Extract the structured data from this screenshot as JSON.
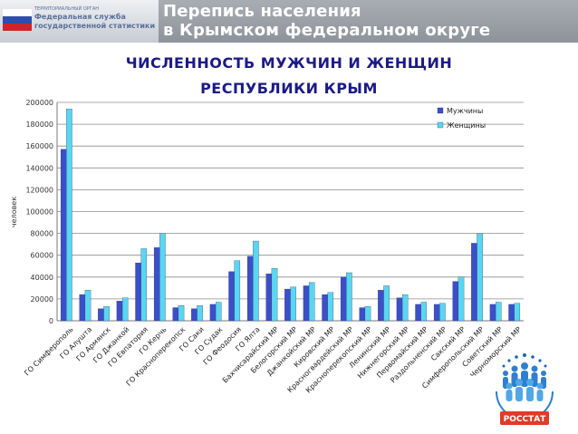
{
  "header": {
    "agency_line1": "Федеральная служба",
    "agency_line2": "государственной статистики",
    "agency_small": "ТЕРРИТОРИАЛЬНЫЙ ОРГАН",
    "title_line1": "Перепись населения",
    "title_line2": "в Крымском федеральном округе"
  },
  "logo": {
    "text": "РОССТАТ"
  },
  "chart_data": {
    "type": "bar",
    "title_line1": "ЧИСЛЕННОСТЬ МУЖЧИН И ЖЕНЩИН",
    "title_line2": "РЕСПУБЛИКИ КРЫМ",
    "ylabel": "человек",
    "ylim": [
      0,
      200000
    ],
    "yticks": [
      "0",
      "20000",
      "40000",
      "60000",
      "80000",
      "100000",
      "120000",
      "140000",
      "160000",
      "180000",
      "200000"
    ],
    "grid": true,
    "legend_position": "top-right",
    "categories": [
      "ГО Симферополь",
      "ГО Алушта",
      "ГО Армянск",
      "ГО Джанкой",
      "ГО Евпатория",
      "ГО Керчь",
      "ГО Красноперекопск",
      "ГО Саки",
      "ГО Судак",
      "ГО Феодосия",
      "ГО Ялта",
      "Бахчисарайский МР",
      "Белогорский МР",
      "Джанкойский МР",
      "Кировский МР",
      "Красногвардейский МР",
      "Красноперекопский МР",
      "Ленинский МР",
      "Нижнегорский МР",
      "Первомайский МР",
      "Раздольненский МР",
      "Сакский МР",
      "Симферопольский МР",
      "Советский МР",
      "Черноморский МР"
    ],
    "series": [
      {
        "name": "Мужчины",
        "color": "#3b4fc8",
        "values": [
          157000,
          24000,
          11000,
          18000,
          53000,
          67000,
          12000,
          11000,
          15000,
          45000,
          59000,
          43000,
          29000,
          32000,
          24000,
          40000,
          12000,
          28000,
          21000,
          15000,
          15000,
          36000,
          71000,
          15000,
          15000
        ]
      },
      {
        "name": "Женщины",
        "color": "#5ad6ef",
        "values": [
          194000,
          28000,
          13000,
          21000,
          66000,
          80000,
          14000,
          14000,
          17000,
          55000,
          73000,
          48000,
          31000,
          35000,
          26000,
          44000,
          13000,
          32000,
          24000,
          17000,
          16000,
          40000,
          80000,
          17000,
          16000
        ]
      }
    ]
  }
}
